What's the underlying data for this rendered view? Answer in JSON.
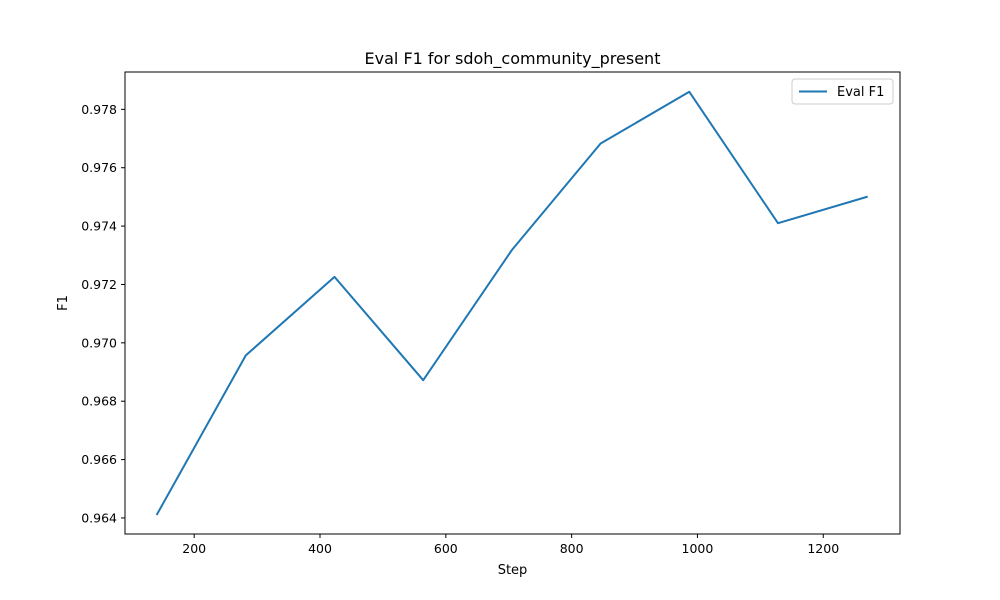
{
  "chart_data": {
    "type": "line",
    "title": "Eval F1 for sdoh_community_present",
    "xlabel": "Step",
    "ylabel": "F1",
    "xlim": [
      90,
      1322
    ],
    "ylim": [
      0.96345,
      0.97928
    ],
    "xticks": [
      200,
      400,
      600,
      800,
      1000,
      1200
    ],
    "yticks": [
      0.964,
      0.966,
      0.968,
      0.97,
      0.972,
      0.974,
      0.976,
      0.978
    ],
    "grid": false,
    "legend_position": "top-right",
    "series": [
      {
        "name": "Eval F1",
        "color": "#1f77b4",
        "x": [
          141,
          282,
          423,
          564,
          705,
          846,
          987,
          1128,
          1269
        ],
        "y": [
          0.96413,
          0.96957,
          0.97226,
          0.96872,
          0.97318,
          0.97683,
          0.9786,
          0.9741,
          0.975
        ]
      }
    ]
  }
}
